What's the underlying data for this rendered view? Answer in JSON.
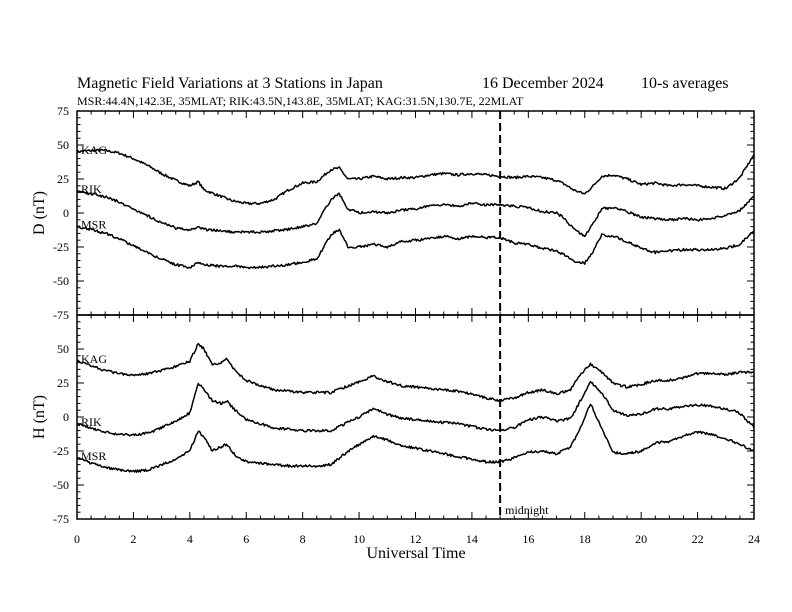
{
  "header": {
    "title": "Magnetic Field Variations at 3 Stations in Japan",
    "date": "16 December 2024",
    "averaging": "10-s averages",
    "stations_line": "MSR:44.4N,142.3E, 35MLAT;  RIK:43.5N,143.8E, 35MLAT;  KAG:31.5N,130.7E, 22MLAT"
  },
  "chart_data": [
    {
      "type": "line",
      "panel": "D",
      "ylabel": "D (nT)",
      "ylim": [
        -75,
        75
      ],
      "yticks": [
        75,
        50,
        25,
        0,
        -25,
        -50,
        -75
      ],
      "xlim": [
        0,
        24
      ],
      "xticks": [
        0,
        2,
        4,
        6,
        8,
        10,
        12,
        14,
        16,
        18,
        20,
        22,
        24
      ],
      "x": [
        0,
        0.5,
        1,
        1.5,
        2,
        2.5,
        3,
        3.5,
        4,
        4.3,
        4.5,
        5,
        5.5,
        6,
        6.5,
        7,
        7.5,
        8,
        8.5,
        9,
        9.3,
        9.6,
        10,
        10.5,
        11,
        11.5,
        12,
        12.5,
        13,
        13.5,
        14,
        14.5,
        15,
        15.5,
        16,
        16.5,
        17,
        17.3,
        17.6,
        18,
        18.3,
        18.6,
        19,
        19.5,
        20,
        20.5,
        21,
        21.5,
        22,
        22.5,
        23,
        23.5,
        24
      ],
      "series": [
        {
          "name": "KAG",
          "values": [
            45,
            46,
            46,
            44,
            40,
            35,
            29,
            24,
            20,
            23,
            17,
            13,
            9,
            7,
            7,
            10,
            17,
            22,
            23,
            32,
            33,
            25,
            25,
            27,
            25,
            26,
            26,
            28,
            29,
            28,
            29,
            28,
            27,
            26,
            27,
            26,
            24,
            21,
            17,
            14,
            20,
            27,
            28,
            25,
            21,
            22,
            20,
            21,
            20,
            19,
            18,
            26,
            43
          ]
        },
        {
          "name": "RIK",
          "values": [
            16,
            14,
            12,
            8,
            3,
            -2,
            -7,
            -11,
            -13,
            -10,
            -12,
            -13,
            -14,
            -14,
            -14,
            -13,
            -12,
            -10,
            -8,
            10,
            14,
            3,
            0,
            1,
            0,
            2,
            3,
            5,
            6,
            5,
            7,
            6,
            6,
            5,
            4,
            1,
            0,
            -4,
            -12,
            -17,
            -8,
            3,
            4,
            1,
            -3,
            -4,
            -5,
            -4,
            -5,
            -4,
            -2,
            2,
            12
          ]
        },
        {
          "name": "MSR",
          "values": [
            -10,
            -12,
            -15,
            -19,
            -24,
            -29,
            -34,
            -38,
            -40,
            -36,
            -38,
            -39,
            -39,
            -40,
            -40,
            -39,
            -38,
            -36,
            -34,
            -16,
            -12,
            -25,
            -25,
            -23,
            -25,
            -21,
            -20,
            -19,
            -17,
            -19,
            -17,
            -18,
            -18,
            -22,
            -23,
            -26,
            -28,
            -31,
            -35,
            -37,
            -28,
            -16,
            -17,
            -21,
            -26,
            -29,
            -28,
            -27,
            -27,
            -27,
            -26,
            -23,
            -13
          ]
        }
      ]
    },
    {
      "type": "line",
      "panel": "H",
      "ylabel": "H (nT)",
      "xlabel": "Universal Time",
      "ylim": [
        -75,
        75
      ],
      "yticks": [
        50,
        25,
        0,
        -25,
        -50,
        -75
      ],
      "xlim": [
        0,
        24
      ],
      "xticks": [
        0,
        2,
        4,
        6,
        8,
        10,
        12,
        14,
        16,
        18,
        20,
        22,
        24
      ],
      "x": [
        0,
        0.5,
        1,
        1.5,
        2,
        2.5,
        3,
        3.5,
        4,
        4.3,
        4.5,
        4.8,
        5.1,
        5.3,
        5.6,
        6,
        6.5,
        7,
        7.5,
        8,
        8.5,
        9,
        9.5,
        10,
        10.5,
        11,
        11.5,
        12,
        12.5,
        13,
        13.5,
        14,
        14.5,
        15,
        15.5,
        16,
        16.5,
        17,
        17.5,
        17.8,
        18.2,
        18.6,
        19,
        19.5,
        20,
        20.5,
        21,
        21.5,
        22,
        22.5,
        23,
        23.5,
        24
      ],
      "series": [
        {
          "name": "KAG",
          "values": [
            41,
            38,
            34,
            32,
            31,
            32,
            34,
            37,
            41,
            54,
            50,
            38,
            40,
            43,
            34,
            27,
            23,
            20,
            19,
            18,
            18,
            18,
            22,
            26,
            30,
            26,
            23,
            22,
            21,
            20,
            19,
            17,
            14,
            12,
            14,
            18,
            20,
            17,
            20,
            30,
            39,
            33,
            25,
            22,
            24,
            27,
            27,
            29,
            32,
            32,
            31,
            33,
            33
          ]
        },
        {
          "name": "RIK",
          "values": [
            -5,
            -8,
            -11,
            -13,
            -13,
            -12,
            -8,
            -3,
            3,
            25,
            20,
            12,
            10,
            12,
            5,
            -2,
            -5,
            -8,
            -9,
            -10,
            -10,
            -10,
            -5,
            0,
            6,
            2,
            -1,
            -2,
            -3,
            -4,
            -5,
            -7,
            -9,
            -10,
            -8,
            -2,
            0,
            -3,
            -1,
            10,
            26,
            18,
            5,
            1,
            2,
            6,
            6,
            8,
            9,
            8,
            6,
            3,
            -8
          ]
        },
        {
          "name": "MSR",
          "values": [
            -30,
            -34,
            -37,
            -39,
            -40,
            -39,
            -35,
            -31,
            -25,
            -10,
            -15,
            -25,
            -22,
            -20,
            -28,
            -33,
            -34,
            -35,
            -36,
            -36,
            -36,
            -35,
            -27,
            -20,
            -14,
            -17,
            -21,
            -23,
            -25,
            -27,
            -29,
            -31,
            -33,
            -33,
            -30,
            -26,
            -25,
            -27,
            -22,
            -10,
            10,
            -8,
            -26,
            -27,
            -25,
            -19,
            -18,
            -14,
            -11,
            -13,
            -16,
            -20,
            -25
          ]
        }
      ]
    }
  ],
  "annotations": {
    "midnight_label": "midnight",
    "midnight_ut": 15
  }
}
